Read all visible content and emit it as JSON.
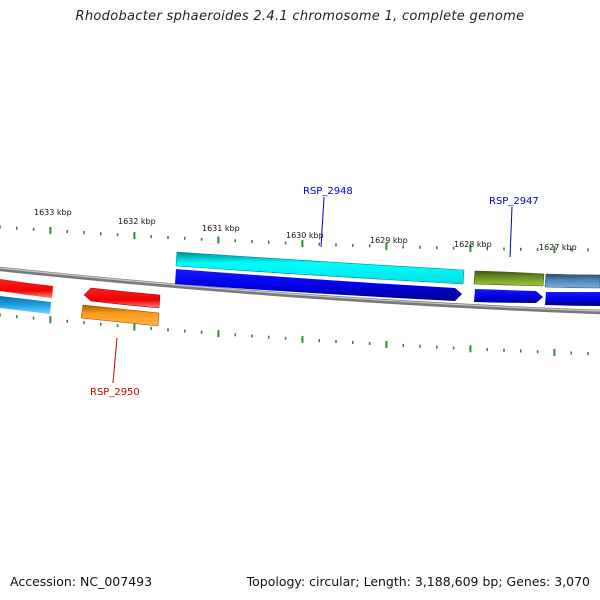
{
  "title": "Rhodobacter sphaeroides 2.4.1 chromosome 1, complete genome",
  "footer": {
    "accession": "Accession: NC_007493",
    "summary": "Topology: circular; Length: 3,188,609 bp; Genes: 3,070"
  },
  "scale": {
    "unit_labels": [
      "1633 kbp",
      "1632 kbp",
      "1631 kbp",
      "1630 kbp",
      "1629 kbp",
      "1628 kbp",
      "1627 kbp"
    ]
  },
  "genes": [
    {
      "label": "RSP_2948",
      "color": "#0000cc"
    },
    {
      "label": "RSP_2947",
      "color": "#0000cc"
    },
    {
      "label": "RSP_2950",
      "color": "#cc0000"
    }
  ],
  "colors": {
    "backbone": "#888888",
    "ticks": "#2e8b2e",
    "cyan": "#00e5e5",
    "blue": "#0000e0",
    "red": "#ee0000",
    "orange": "#ff9a1a",
    "olive": "#6b8e23",
    "steelblue": "#4682b4",
    "skyblue": "#1ea0e0"
  }
}
